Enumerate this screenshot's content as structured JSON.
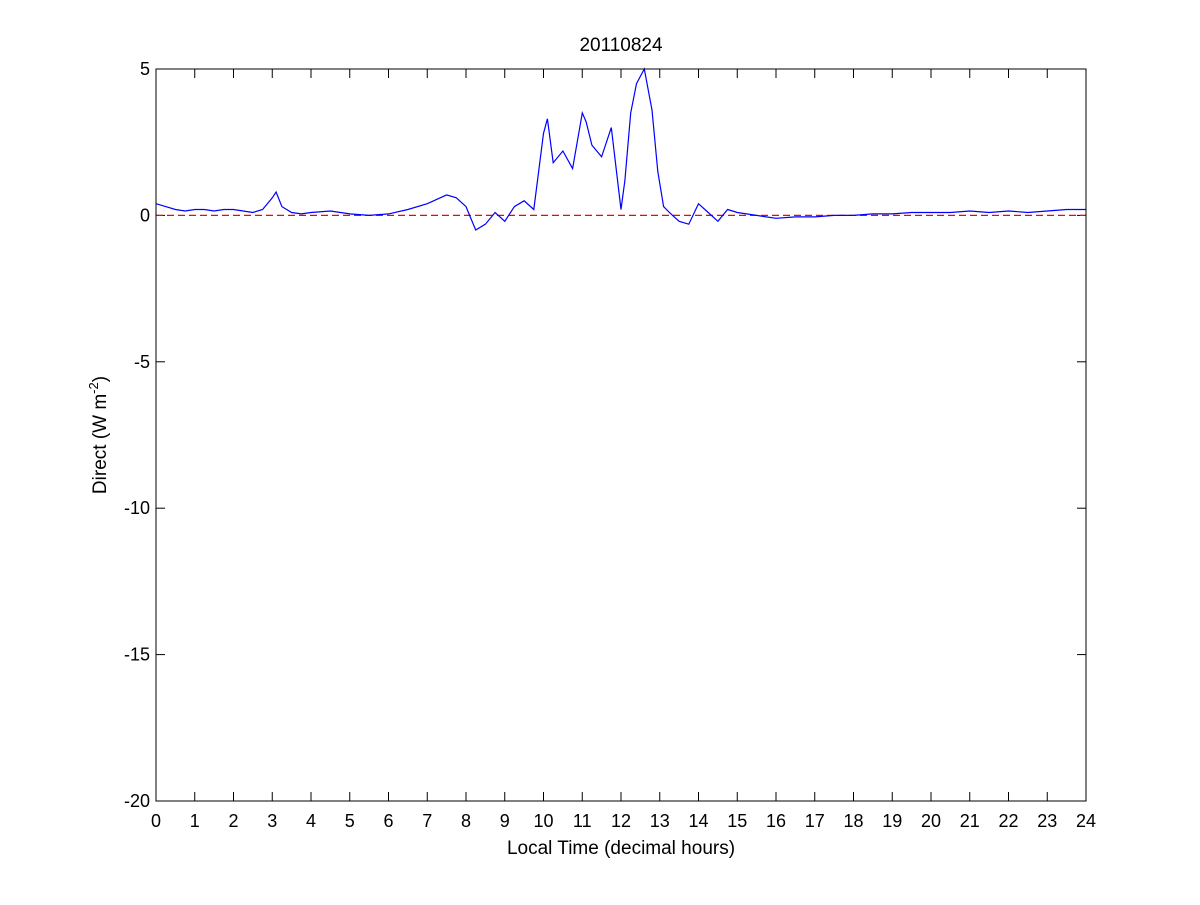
{
  "chart_data": {
    "type": "line",
    "title": "20110824",
    "xlabel": "Local Time (decimal hours)",
    "ylabel_main": "Direct (W m",
    "ylabel_superscript": "-2",
    "ylabel_close": ")",
    "xlim": [
      0,
      24
    ],
    "ylim": [
      -20,
      5
    ],
    "xticks": [
      0,
      1,
      2,
      3,
      4,
      5,
      6,
      7,
      8,
      9,
      10,
      11,
      12,
      13,
      14,
      15,
      16,
      17,
      18,
      19,
      20,
      21,
      22,
      23,
      24
    ],
    "yticks": [
      -20,
      -15,
      -10,
      -5,
      0,
      5
    ],
    "grid": false,
    "legend": "none",
    "reference_line": {
      "y": 0,
      "color": "#ff0000",
      "style": "dashed"
    },
    "series": [
      {
        "color": "#0000ff",
        "x": [
          0,
          0.25,
          0.5,
          0.75,
          1,
          1.25,
          1.5,
          1.75,
          2,
          2.25,
          2.5,
          2.75,
          3,
          3.1,
          3.25,
          3.5,
          3.75,
          4,
          4.5,
          5,
          5.5,
          6,
          6.5,
          7,
          7.5,
          7.75,
          8,
          8.25,
          8.5,
          8.75,
          9,
          9.25,
          9.5,
          9.75,
          10,
          10.1,
          10.25,
          10.5,
          10.75,
          11,
          11.1,
          11.25,
          11.5,
          11.75,
          12,
          12.1,
          12.25,
          12.4,
          12.6,
          12.8,
          12.95,
          13.1,
          13.25,
          13.5,
          13.75,
          14,
          14.25,
          14.5,
          14.75,
          15,
          15.5,
          16,
          16.5,
          17,
          17.5,
          18,
          18.5,
          19,
          19.5,
          20,
          20.5,
          21,
          21.5,
          22,
          22.5,
          23,
          23.5,
          24
        ],
        "y": [
          0.4,
          0.3,
          0.2,
          0.15,
          0.2,
          0.2,
          0.15,
          0.2,
          0.2,
          0.15,
          0.1,
          0.2,
          0.6,
          0.8,
          0.3,
          0.1,
          0.05,
          0.1,
          0.15,
          0.05,
          0,
          0.05,
          0.2,
          0.4,
          0.7,
          0.6,
          0.3,
          -0.5,
          -0.3,
          0.1,
          -0.2,
          0.3,
          0.5,
          0.2,
          2.8,
          3.3,
          1.8,
          2.2,
          1.6,
          3.5,
          3.2,
          2.4,
          2.0,
          3.0,
          0.2,
          1.2,
          3.5,
          4.5,
          5.0,
          3.6,
          1.5,
          0.3,
          0.1,
          -0.2,
          -0.3,
          0.4,
          0.1,
          -0.2,
          0.2,
          0.1,
          0,
          -0.1,
          -0.05,
          -0.05,
          0,
          0,
          0.05,
          0.05,
          0.1,
          0.1,
          0.1,
          0.15,
          0.1,
          0.15,
          0.1,
          0.15,
          0.2,
          0.2
        ]
      }
    ]
  }
}
